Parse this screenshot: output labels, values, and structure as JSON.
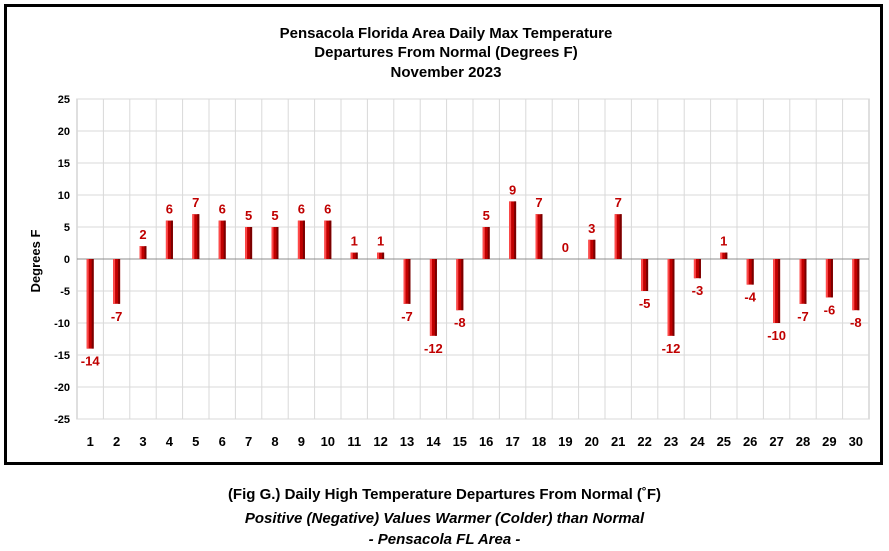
{
  "chart_data": {
    "type": "bar",
    "title": [
      "Pensacola Florida Area Daily Max Temperature",
      "Departures From Normal (Degrees F)",
      "November 2023"
    ],
    "xlabel": "",
    "ylabel": "Degrees F",
    "ylim": [
      -25,
      25
    ],
    "ytick_step": 5,
    "grid": true,
    "legend": "none",
    "bar_color": "#c00000",
    "label_color": "#c00000",
    "categories": [
      "1",
      "2",
      "3",
      "4",
      "5",
      "6",
      "7",
      "8",
      "9",
      "10",
      "11",
      "12",
      "13",
      "14",
      "15",
      "16",
      "17",
      "18",
      "19",
      "20",
      "21",
      "22",
      "23",
      "24",
      "25",
      "26",
      "27",
      "28",
      "29",
      "30"
    ],
    "values": [
      -14,
      -7,
      2,
      6,
      7,
      6,
      5,
      5,
      6,
      6,
      1,
      1,
      -7,
      -12,
      -8,
      5,
      9,
      7,
      0,
      3,
      7,
      -5,
      -12,
      -3,
      1,
      -4,
      -10,
      -7,
      -6,
      -8
    ]
  },
  "caption": {
    "line1": "(Fig G.) Daily High Temperature Departures From Normal (˚F)",
    "line2": "Positive (Negative) Values Warmer (Colder) than Normal",
    "line3": "- Pensacola FL Area -"
  }
}
